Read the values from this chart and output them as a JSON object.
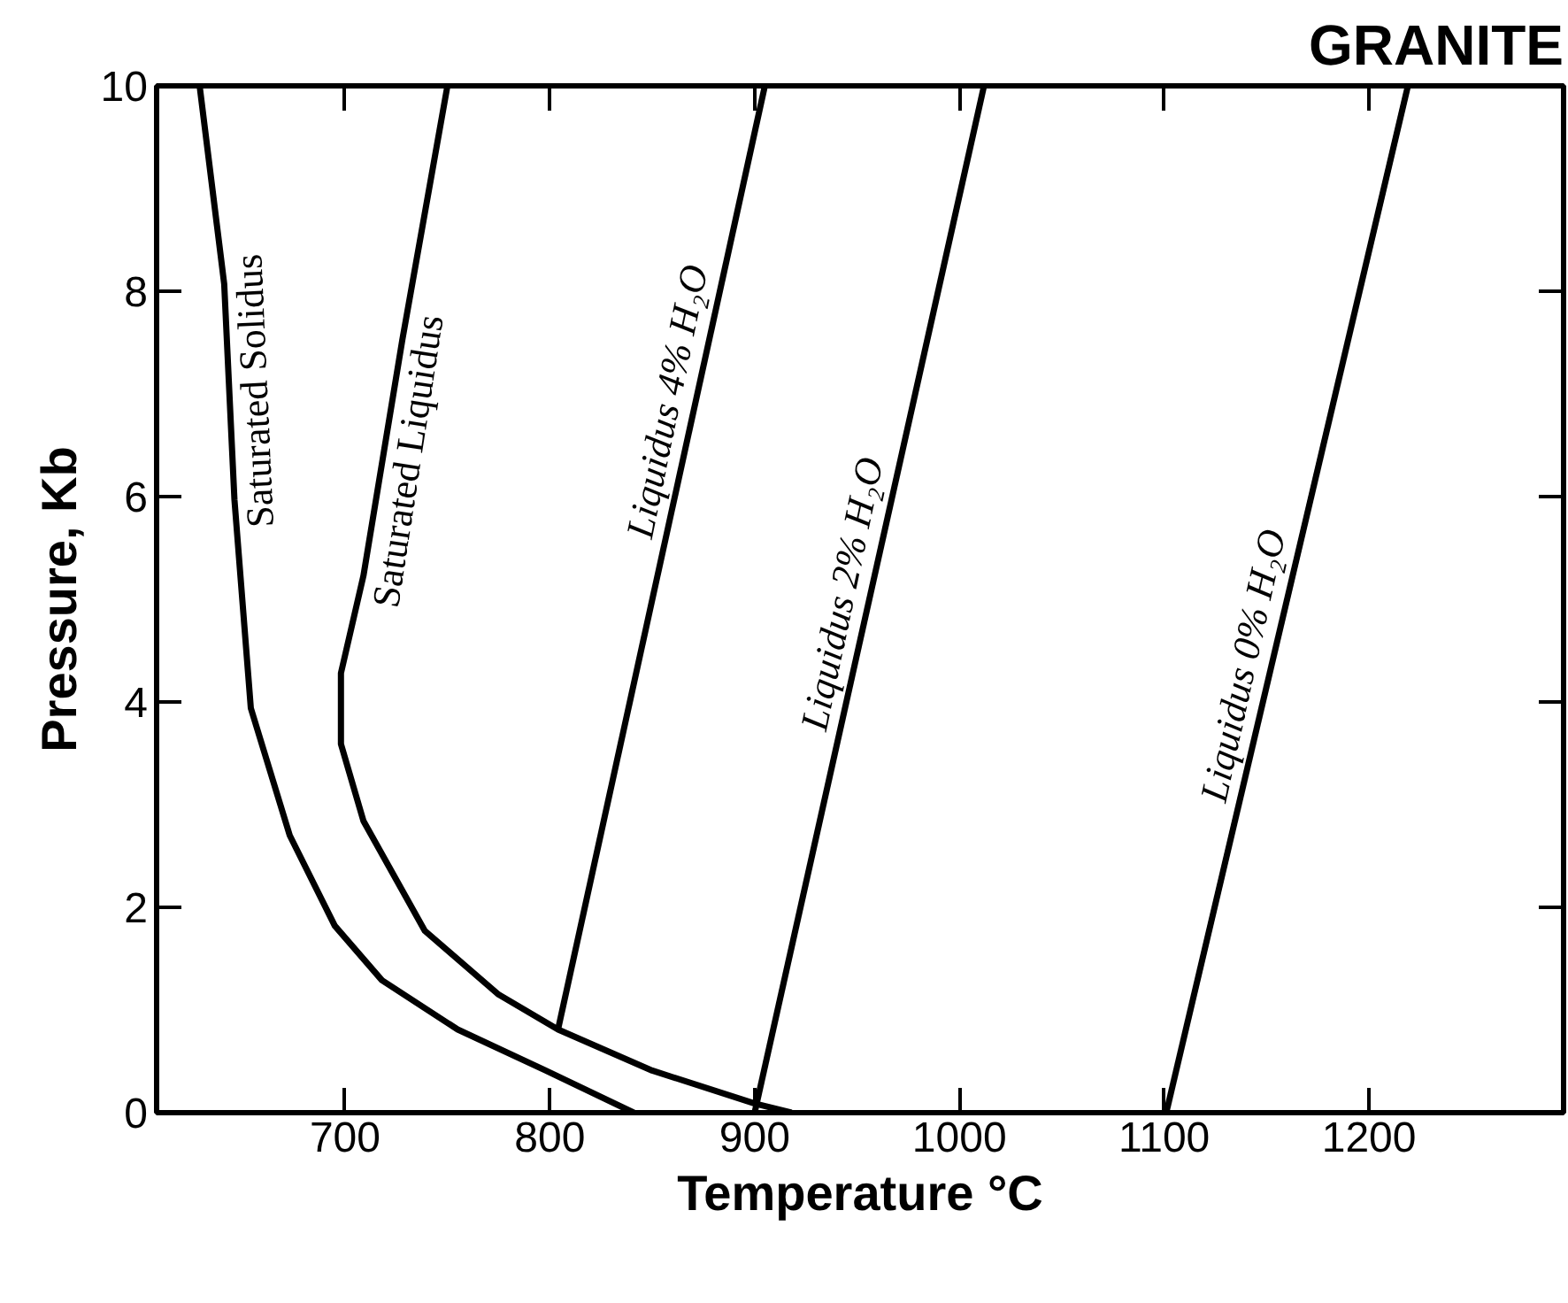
{
  "chart_data": {
    "type": "line",
    "title": "GRANITE",
    "xlabel": "Temperature °C",
    "ylabel": "Pressure, Kb",
    "xlim": [
      608,
      1295
    ],
    "ylim": [
      0,
      10
    ],
    "xticks": [
      700,
      800,
      900,
      1000,
      1100,
      1200
    ],
    "yticks": [
      0,
      2,
      4,
      6,
      8,
      10
    ],
    "grid": false,
    "marker": "none",
    "line_style": "solid",
    "series": [
      {
        "name": "Saturated Solidus",
        "color": "#000000",
        "x": [
          629,
          641,
          646,
          654,
          673,
          695,
          718,
          755,
          798,
          841
        ],
        "values": [
          10,
          8.07,
          5.97,
          3.94,
          2.7,
          1.82,
          1.29,
          0.81,
          0.41,
          0
        ]
      },
      {
        "name": "Saturated Liquidus",
        "color": "#000000",
        "x": [
          750,
          728,
          709,
          698,
          698,
          709,
          739,
          775,
          804,
          850,
          900,
          918
        ],
        "values": [
          10,
          7.53,
          5.23,
          4.28,
          3.59,
          2.84,
          1.77,
          1.15,
          0.81,
          0.41,
          0.09,
          0
        ]
      },
      {
        "name": "Liquidus 4% H₂O",
        "color": "#000000",
        "x": [
          804,
          905
        ],
        "values": [
          0.81,
          10
        ]
      },
      {
        "name": "Liquidus 2% H₂O",
        "color": "#000000",
        "x": [
          900,
          1012
        ],
        "values": [
          0,
          10
        ]
      },
      {
        "name": "Liquidus 0% H₂O",
        "color": "#000000",
        "x": [
          1101,
          1219
        ],
        "values": [
          0,
          10
        ]
      }
    ]
  }
}
